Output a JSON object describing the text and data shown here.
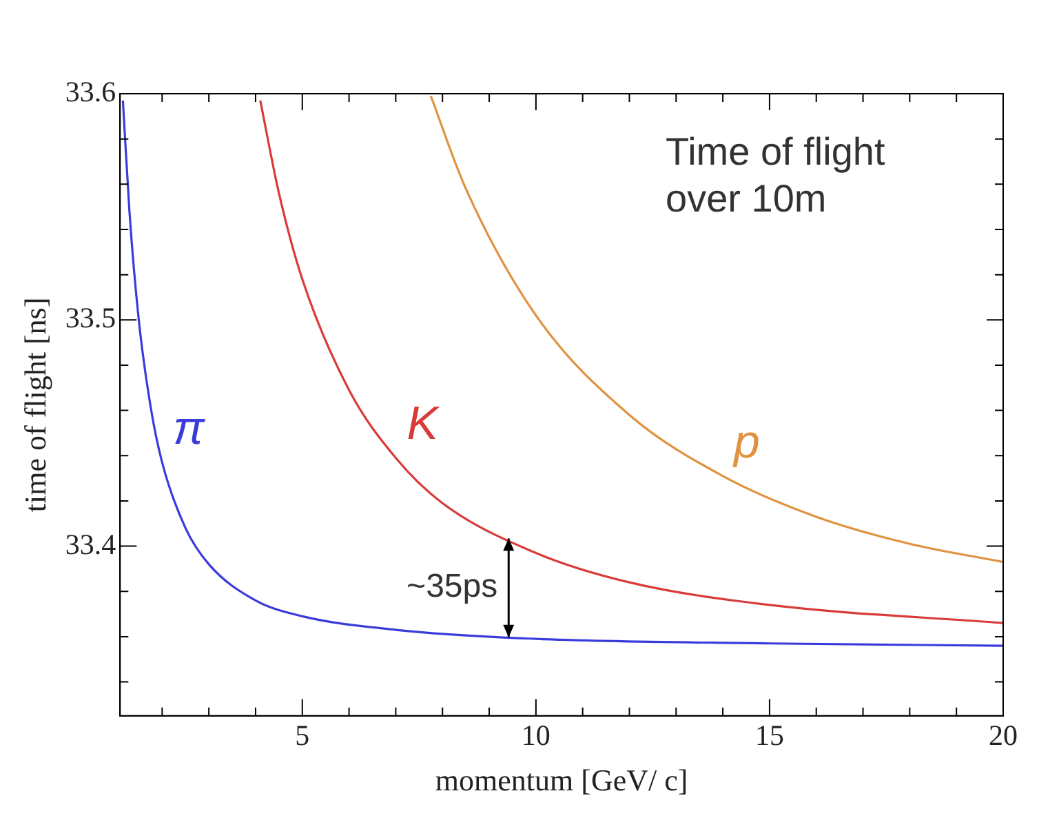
{
  "chart_data": {
    "type": "line",
    "xlabel": "momentum [GeV/ c]",
    "ylabel": "time of flight [ns]",
    "xlim": [
      1.1,
      20
    ],
    "ylim": [
      33.325,
      33.6
    ],
    "xticks": [
      {
        "value": 2,
        "label": null
      },
      {
        "value": 3,
        "label": null
      },
      {
        "value": 4,
        "label": null
      },
      5,
      {
        "value": 6,
        "label": null
      },
      {
        "value": 7,
        "label": null
      },
      {
        "value": 8,
        "label": null
      },
      {
        "value": 9,
        "label": null
      },
      10,
      {
        "value": 11,
        "label": null
      },
      {
        "value": 12,
        "label": null
      },
      {
        "value": 13,
        "label": null
      },
      {
        "value": 14,
        "label": null
      },
      15,
      {
        "value": 16,
        "label": null
      },
      {
        "value": 17,
        "label": null
      },
      {
        "value": 18,
        "label": null
      },
      {
        "value": 19,
        "label": null
      },
      20
    ],
    "yticks": [
      {
        "value": 33.34,
        "label": null
      },
      {
        "value": 33.36,
        "label": null
      },
      {
        "value": 33.38,
        "label": null
      },
      33.4,
      {
        "value": 33.42,
        "label": null
      },
      {
        "value": 33.44,
        "label": null
      },
      {
        "value": 33.46,
        "label": null
      },
      {
        "value": 33.48,
        "label": null
      },
      33.5,
      {
        "value": 33.52,
        "label": null
      },
      {
        "value": 33.54,
        "label": null
      },
      {
        "value": 33.56,
        "label": null
      },
      {
        "value": 33.58,
        "label": null
      },
      33.6
    ],
    "grid": false,
    "legend": false,
    "marker": "none",
    "line_style": "solid",
    "series": [
      {
        "name": "π",
        "color": "#3b3bdc",
        "x": [
          1.16,
          1.3,
          1.5,
          1.75,
          2,
          2.5,
          3,
          4,
          5,
          7,
          10,
          15,
          20
        ],
        "values": [
          33.597,
          33.548,
          33.5,
          33.462,
          33.437,
          33.408,
          33.392,
          33.376,
          33.369,
          33.363,
          33.359,
          33.357,
          33.356
        ]
      },
      {
        "name": "K",
        "color": "#d93b3b",
        "x": [
          4.1,
          4.5,
          5,
          6,
          7,
          8,
          10,
          12,
          15,
          20
        ],
        "values": [
          33.597,
          33.556,
          33.518,
          33.469,
          33.439,
          33.419,
          33.397,
          33.384,
          33.374,
          33.366
        ]
      },
      {
        "name": "p",
        "color": "#e0923f",
        "x": [
          7.75,
          8.5,
          10,
          12,
          14,
          16,
          18,
          20
        ],
        "values": [
          33.599,
          33.558,
          33.502,
          33.458,
          33.431,
          33.413,
          33.401,
          33.393
        ]
      }
    ],
    "annotations": [
      "Time of flight\nover 10m",
      "~35ps"
    ]
  }
}
